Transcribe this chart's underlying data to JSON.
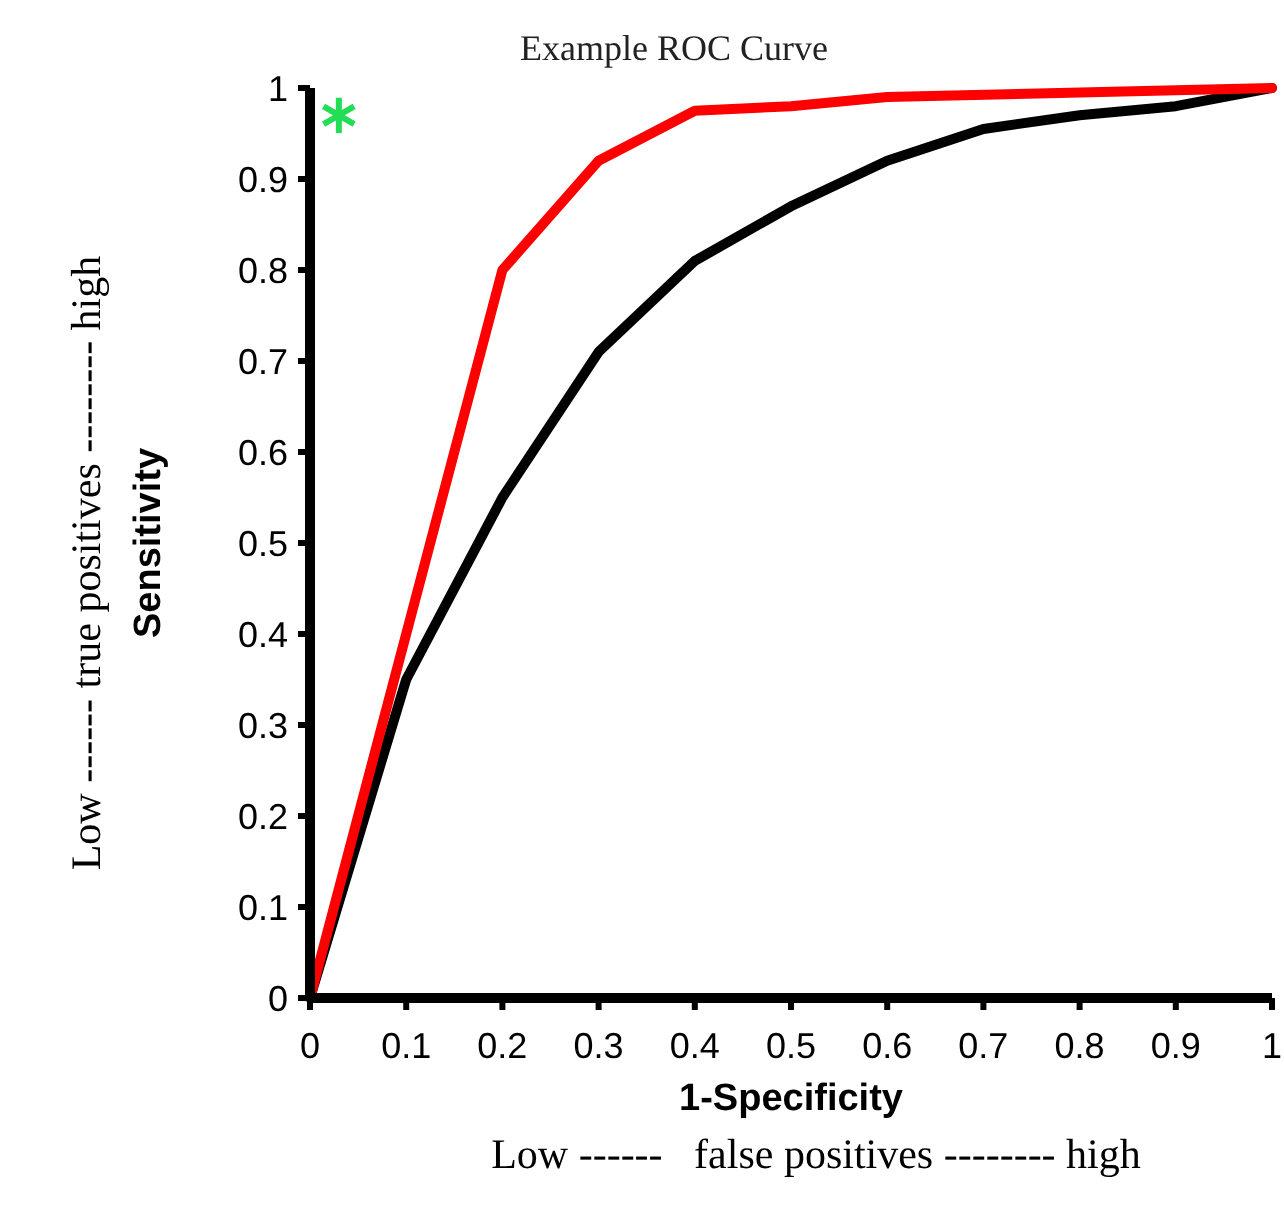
{
  "chart_data": {
    "type": "line",
    "title": "Example ROC Curve",
    "xlabel": "1-Specificity",
    "ylabel": "Sensitivity",
    "annotations": [
      "Low ------ true positives -------- high",
      "Low ------   false positives -------- high"
    ],
    "xlim": [
      0,
      1
    ],
    "ylim": [
      0,
      1
    ],
    "xticks": [
      0,
      0.1,
      0.2,
      0.3,
      0.4,
      0.5,
      0.6,
      0.7,
      0.8,
      0.9,
      1
    ],
    "yticks": [
      0,
      0.1,
      0.2,
      0.3,
      0.4,
      0.5,
      0.6,
      0.7,
      0.8,
      0.9,
      1
    ],
    "grid": false,
    "marker": "none",
    "line_style": "solid",
    "series": [
      {
        "color": "#000000",
        "x": [
          0,
          0.1,
          0.2,
          0.3,
          0.4,
          0.5,
          0.6,
          0.7,
          0.8,
          0.9,
          1
        ],
        "values": [
          0,
          0.35,
          0.55,
          0.71,
          0.81,
          0.87,
          0.92,
          0.955,
          0.97,
          0.98,
          1
        ]
      },
      {
        "color": "#ff0000",
        "x": [
          0,
          0.2,
          0.3,
          0.4,
          0.5,
          0.6,
          1
        ],
        "values": [
          0,
          0.8,
          0.92,
          0.975,
          0.98,
          0.99,
          1
        ]
      },
      {
        "type": "scatter",
        "color": "#22dd55",
        "marker": "cross",
        "x": [
          0.03
        ],
        "values": [
          0.97
        ]
      }
    ]
  }
}
